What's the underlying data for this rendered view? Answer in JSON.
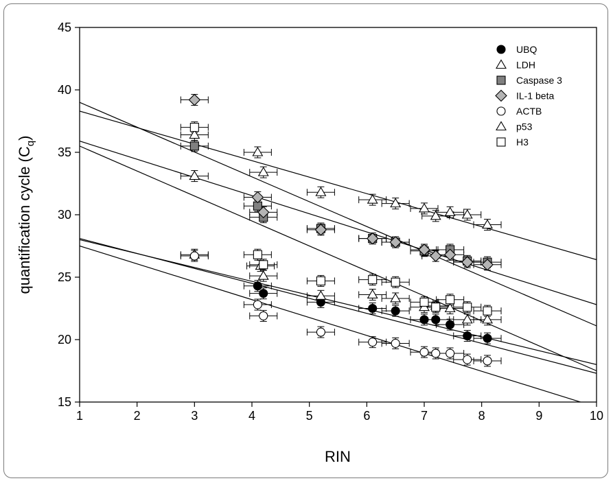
{
  "chart_data": {
    "type": "scatter",
    "xlabel": "RIN",
    "ylabel_main": "quantification cycle (C",
    "ylabel_sub": "q",
    "ylabel_close": ")",
    "xlim": [
      1,
      10
    ],
    "ylim": [
      15,
      45
    ],
    "xticks": [
      1,
      2,
      3,
      4,
      5,
      6,
      7,
      8,
      9,
      10
    ],
    "yticks": [
      15,
      20,
      25,
      30,
      35,
      40,
      45
    ],
    "grid": false,
    "legend_position": "top-right",
    "series": [
      {
        "name": "UBQ",
        "marker": "circle",
        "fill": "#000000",
        "points": [
          [
            4.1,
            24.3
          ],
          [
            4.2,
            23.7
          ],
          [
            5.2,
            23.0
          ],
          [
            6.1,
            22.5
          ],
          [
            6.5,
            22.3
          ],
          [
            7.0,
            21.6
          ],
          [
            7.2,
            21.6
          ],
          [
            7.45,
            21.2
          ],
          [
            7.75,
            20.3
          ],
          [
            8.1,
            20.1
          ]
        ],
        "fit": [
          [
            1,
            28.1
          ],
          [
            10,
            17.3
          ]
        ]
      },
      {
        "name": "LDH",
        "marker": "triangle",
        "fill": "#ffffff",
        "points": [
          [
            3.0,
            26.8
          ],
          [
            4.15,
            25.9
          ],
          [
            4.2,
            25.1
          ],
          [
            5.2,
            23.5
          ],
          [
            6.1,
            23.6
          ],
          [
            6.5,
            23.3
          ],
          [
            7.0,
            22.6
          ],
          [
            7.2,
            22.7
          ],
          [
            7.45,
            22.5
          ],
          [
            7.75,
            21.6
          ],
          [
            8.1,
            21.6
          ]
        ],
        "fit": [
          [
            1,
            28.0
          ],
          [
            10,
            18.0
          ]
        ]
      },
      {
        "name": "Caspase 3",
        "marker": "square",
        "fill": "#808080",
        "points": [
          [
            3.0,
            35.5
          ],
          [
            4.1,
            30.7
          ],
          [
            4.2,
            29.8
          ],
          [
            5.2,
            28.9
          ],
          [
            6.1,
            28.1
          ],
          [
            6.5,
            27.8
          ],
          [
            7.0,
            27.1
          ],
          [
            7.45,
            27.2
          ],
          [
            7.75,
            26.3
          ],
          [
            8.1,
            26.2
          ]
        ],
        "fit": [
          [
            1,
            39.0
          ],
          [
            10,
            21.1
          ]
        ]
      },
      {
        "name": "IL-1 beta",
        "marker": "diamond",
        "fill": "#b4b4b4",
        "points": [
          [
            3.0,
            39.2
          ],
          [
            4.1,
            31.4
          ],
          [
            4.2,
            30.2
          ],
          [
            5.2,
            28.8
          ],
          [
            6.1,
            28.1
          ],
          [
            6.5,
            27.8
          ],
          [
            7.0,
            27.2
          ],
          [
            7.2,
            26.7
          ],
          [
            7.45,
            26.8
          ],
          [
            7.75,
            26.2
          ],
          [
            8.1,
            26.0
          ]
        ],
        "fit": [
          [
            1,
            35.9
          ],
          [
            10,
            22.8
          ]
        ]
      },
      {
        "name": "ACTB",
        "marker": "circle",
        "fill": "#ffffff",
        "points": [
          [
            3.0,
            26.7
          ],
          [
            4.1,
            22.8
          ],
          [
            4.2,
            21.9
          ],
          [
            5.2,
            20.6
          ],
          [
            6.1,
            19.8
          ],
          [
            6.5,
            19.7
          ],
          [
            7.0,
            19.0
          ],
          [
            7.2,
            18.9
          ],
          [
            7.45,
            18.9
          ],
          [
            7.75,
            18.4
          ],
          [
            8.1,
            18.3
          ]
        ],
        "fit": [
          [
            1,
            27.5
          ],
          [
            10,
            14.6
          ]
        ]
      },
      {
        "name": "p53",
        "marker": "triangle",
        "fill": "#ffffff",
        "points": [
          [
            3.0,
            36.4
          ],
          [
            3.0,
            33.1
          ],
          [
            4.1,
            35.0
          ],
          [
            4.2,
            33.4
          ],
          [
            5.2,
            31.8
          ],
          [
            6.1,
            31.2
          ],
          [
            6.5,
            30.9
          ],
          [
            7.0,
            30.5
          ],
          [
            7.2,
            29.9
          ],
          [
            7.45,
            30.2
          ],
          [
            7.75,
            30.0
          ],
          [
            8.1,
            29.2
          ]
        ],
        "fit": [
          [
            1,
            38.3
          ],
          [
            10,
            26.4
          ]
        ]
      },
      {
        "name": "H3",
        "marker": "square",
        "fill": "#ffffff",
        "points": [
          [
            3.0,
            37.0
          ],
          [
            4.1,
            26.8
          ],
          [
            4.2,
            26.0
          ],
          [
            5.2,
            24.7
          ],
          [
            6.1,
            24.8
          ],
          [
            6.5,
            24.6
          ],
          [
            7.0,
            23.0
          ],
          [
            7.2,
            22.6
          ],
          [
            7.45,
            23.2
          ],
          [
            7.75,
            22.6
          ],
          [
            8.1,
            22.3
          ]
        ],
        "fit": [
          [
            1,
            35.5
          ],
          [
            10,
            17.5
          ]
        ]
      }
    ]
  }
}
